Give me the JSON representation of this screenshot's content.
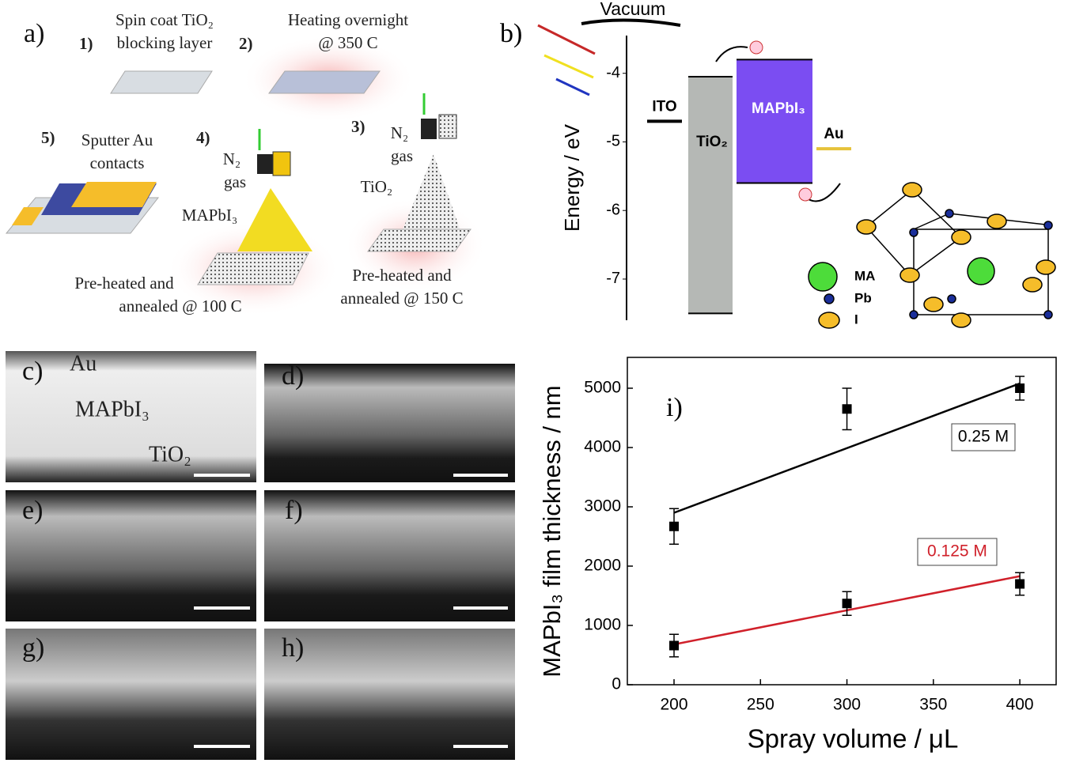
{
  "panel_a": {
    "label": "a)",
    "step1": {
      "number": "1)",
      "lines": [
        "Spin coat TiO₂",
        "blocking layer"
      ]
    },
    "step2": {
      "number": "2)",
      "lines": [
        "Heating overnight",
        "@ 350 C"
      ]
    },
    "step3": {
      "number": "3)",
      "gas": [
        "N₂",
        "gas"
      ],
      "material": "TiO₂",
      "lines": [
        "Pre-heated and",
        "annealed @ 150 C"
      ]
    },
    "step4": {
      "number": "4)",
      "gas": [
        "N₂",
        "gas"
      ],
      "material": "MAPbI₃",
      "lines": [
        "Pre-heated and",
        "annealed @ 100 C"
      ]
    },
    "step5": {
      "number": "5)",
      "lines": [
        "Sputter Au",
        "contacts"
      ]
    }
  },
  "sem": {
    "labels": [
      "c)",
      "d)",
      "e)",
      "f)",
      "g)",
      "h)"
    ],
    "layers": [
      "Au",
      "MAPbI₃",
      "TiO₂"
    ]
  },
  "crystal": {
    "legend": [
      "MA",
      "Pb",
      "I"
    ]
  },
  "chart_data": [
    {
      "type": "energy",
      "label": "b)",
      "title": "Vacuum",
      "ylabel": "Energy / eV",
      "ylim": [
        -7.6,
        -3.45
      ],
      "yticks": [
        -4,
        -5,
        -6,
        -7
      ],
      "levels": [
        {
          "name": "ITO",
          "color": "#000000",
          "value": -4.7
        },
        {
          "name": "Au",
          "color": "#e6c23a",
          "value": -5.1
        }
      ],
      "bands": [
        {
          "name": "TiO₂",
          "color": "#b5b8b5",
          "top": -4.05,
          "bottom": -7.5
        },
        {
          "name": "MAPbI₃",
          "color": "#7b4df2",
          "top": -3.8,
          "bottom": -5.6
        }
      ]
    },
    {
      "type": "scatter",
      "label": "i)",
      "xlabel": "Spray volume / μL",
      "ylabel": "MAPbI₃ film thickness / nm",
      "x": [
        200,
        300,
        400
      ],
      "xlim": [
        173,
        421
      ],
      "xticks": [
        200,
        250,
        300,
        350,
        400
      ],
      "ylim": [
        0,
        5520
      ],
      "yticks": [
        0,
        1000,
        2000,
        3000,
        4000,
        5000
      ],
      "series": [
        {
          "name": "0.25 M",
          "color": "#000000",
          "values": [
            2670,
            4650,
            5000
          ],
          "errors": [
            300,
            350,
            200
          ],
          "fit": [
            2900,
            5080
          ]
        },
        {
          "name": "0.125 M",
          "color": "#d0202a",
          "values": [
            660,
            1370,
            1700
          ],
          "errors": [
            190,
            200,
            190
          ],
          "fit": [
            680,
            1830
          ]
        }
      ]
    }
  ]
}
